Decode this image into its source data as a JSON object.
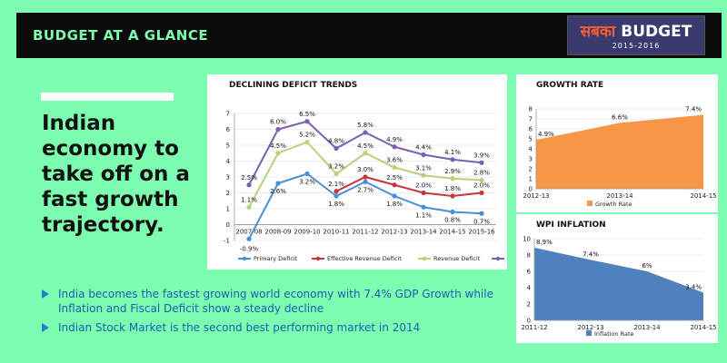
{
  "header": {
    "title": "BUDGET AT A GLANCE",
    "logo_hindi": "सबका",
    "logo_main": "BUDGET",
    "logo_sub": "2015-2016"
  },
  "headline": "Indian economy to take off on a fast growth trajectory.",
  "bullets": [
    "India becomes the fastest growing world economy with 7.4% GDP Growth while Inflation and Fiscal Deficit show a steady decline",
    "Indian Stock Market is the second best performing market in 2014"
  ],
  "colors": {
    "background": "#7dfdb0",
    "primary_deficit": "#4a8fd6",
    "effective_revenue_deficit": "#c8353a",
    "revenue_deficit": "#b8d27a",
    "fiscal_deficit": "#7c5fb0",
    "growth_rate": "#f79646",
    "inflation_rate": "#4f81bd"
  },
  "chart_data": [
    {
      "type": "line",
      "title": "DECLINING DEFICIT TRENDS",
      "categories": [
        "2007-08",
        "2008-09",
        "2009-10",
        "2010-11",
        "2011-12",
        "2012-13",
        "2013-14",
        "2014-15",
        "2015-16"
      ],
      "ylim": [
        -1,
        7
      ],
      "yticks": [
        -1,
        0,
        1,
        2,
        3,
        4,
        5,
        6,
        7
      ],
      "grid": true,
      "legend": "bottom",
      "series": [
        {
          "name": "Primary Deficit",
          "values": [
            -0.9,
            2.6,
            3.2,
            1.8,
            2.7,
            1.8,
            1.1,
            0.8,
            0.7
          ],
          "labels": [
            "-0.9%",
            "2.6%",
            "3.2%",
            "1.8%",
            "2.7%",
            "1.8%",
            "1.1%",
            "0.8%",
            "0.7%"
          ]
        },
        {
          "name": "Effective Revenue Deficit",
          "values": [
            null,
            null,
            null,
            2.1,
            3.0,
            2.5,
            2.0,
            1.8,
            2.0
          ],
          "labels": [
            "",
            "",
            "",
            "2.1%",
            "3.0%",
            "2.5%",
            "2.0%",
            "1.8%",
            "2.0%"
          ]
        },
        {
          "name": "Revenue Deficit",
          "values": [
            1.1,
            4.5,
            5.2,
            3.2,
            4.5,
            3.6,
            3.1,
            2.9,
            2.8
          ],
          "labels": [
            "1.1%",
            "4.5%",
            "5.2%",
            "3.2%",
            "4.5%",
            "3.6%",
            "3.1%",
            "2.9%",
            "2.8%"
          ]
        },
        {
          "name": "Fiscal Deficit",
          "values": [
            2.5,
            6.0,
            6.5,
            4.8,
            5.8,
            4.9,
            4.4,
            4.1,
            3.9
          ],
          "labels": [
            "2.5%",
            "6.0%",
            "6.5%",
            "4.8%",
            "5.8%",
            "4.9%",
            "4.4%",
            "4.1%",
            "3.9%"
          ]
        }
      ]
    },
    {
      "type": "area",
      "title": "GROWTH RATE",
      "categories": [
        "2012-13",
        "2013-14",
        "2014-15"
      ],
      "ylim": [
        0,
        8
      ],
      "yticks": [
        0,
        1,
        2,
        3,
        4,
        5,
        6,
        7,
        8
      ],
      "legend": "bottom",
      "series": [
        {
          "name": "Growth Rate",
          "values": [
            4.9,
            6.6,
            7.4
          ],
          "labels": [
            "4.9%",
            "6.6%",
            "7.4%"
          ]
        }
      ]
    },
    {
      "type": "area",
      "title": "WPI INFLATION",
      "categories": [
        "2011-12",
        "2012-13",
        "2013-14",
        "2014-15"
      ],
      "ylim": [
        0,
        10
      ],
      "yticks": [
        0,
        2,
        4,
        6,
        8,
        10
      ],
      "legend": "bottom",
      "series": [
        {
          "name": "Inflation Rate",
          "values": [
            8.9,
            7.4,
            6.0,
            3.4
          ],
          "labels": [
            "8.9%",
            "7.4%",
            "6%",
            "3.4%"
          ]
        }
      ]
    }
  ]
}
